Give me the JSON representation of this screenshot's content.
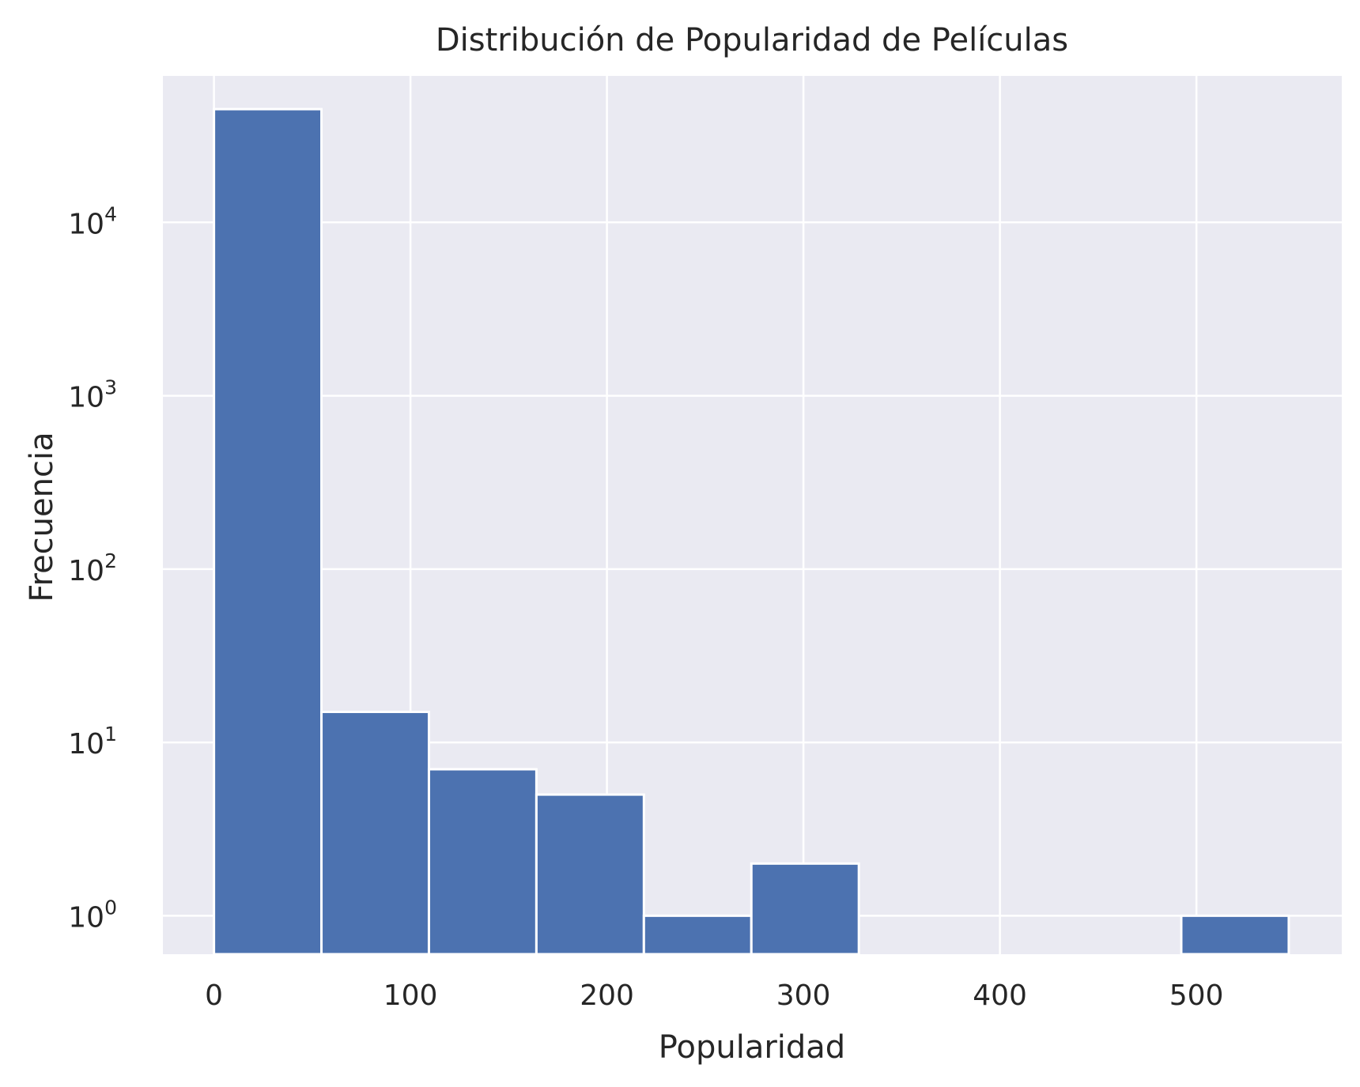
{
  "chart_data": {
    "type": "bar",
    "title": "Distribución de Popularidad de Películas",
    "xlabel": "Popularidad",
    "ylabel": "Frecuencia",
    "y_scale": "log",
    "grid": true,
    "bins": [
      {
        "x0": 0,
        "x1": 54.7,
        "count": 45000
      },
      {
        "x0": 54.7,
        "x1": 109.4,
        "count": 15
      },
      {
        "x0": 109.4,
        "x1": 164.1,
        "count": 7
      },
      {
        "x0": 164.1,
        "x1": 218.8,
        "count": 5
      },
      {
        "x0": 218.8,
        "x1": 273.5,
        "count": 1
      },
      {
        "x0": 273.5,
        "x1": 328.2,
        "count": 2
      },
      {
        "x0": 328.2,
        "x1": 382.9,
        "count": 0
      },
      {
        "x0": 382.9,
        "x1": 437.6,
        "count": 0
      },
      {
        "x0": 437.6,
        "x1": 492.3,
        "count": 0
      },
      {
        "x0": 492.3,
        "x1": 547.0,
        "count": 1
      }
    ],
    "xticks": [
      0,
      100,
      200,
      300,
      400,
      500
    ],
    "yticks": [
      {
        "value": 1,
        "base": "10",
        "exp": "0"
      },
      {
        "value": 10,
        "base": "10",
        "exp": "1"
      },
      {
        "value": 100,
        "base": "10",
        "exp": "2"
      },
      {
        "value": 1000,
        "base": "10",
        "exp": "3"
      },
      {
        "value": 10000,
        "base": "10",
        "exp": "4"
      }
    ],
    "xlim": [
      -26,
      574
    ],
    "ylim": [
      0.6,
      70000
    ],
    "colors": {
      "bar": "#4c72b0",
      "bar_edge": "#ffffff",
      "plot_bg": "#eaeaf2",
      "grid": "#ffffff"
    }
  }
}
